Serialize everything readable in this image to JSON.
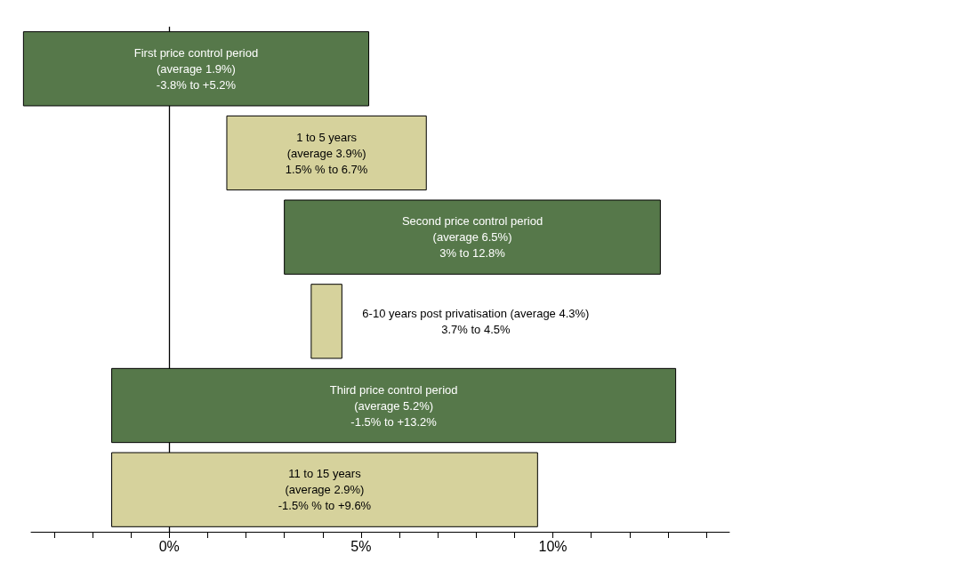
{
  "chart_data": {
    "type": "bar",
    "orientation": "horizontal",
    "categories": [
      null,
      null,
      null,
      null,
      null,
      null
    ],
    "base": [
      -3.8,
      1.5,
      3,
      3.7,
      -1.5,
      -1.5
    ],
    "values": [
      9.0,
      5.2,
      9.8,
      0.8,
      14.7,
      11.1
    ],
    "colors": [
      "#56784a",
      "#d6d29c",
      "#56784a",
      "#d6d29c",
      "#56784a",
      "#d6d29c"
    ],
    "annotations": [
      "First price control period\n(average 1.9%)\n-3.8% to +5.2%",
      "1 to 5 years\n(average 3.9%)\n1.5% % to 6.7%",
      "Second price control period\n(average 6.5%)\n3% to 12.8%",
      "6-10 years post privatisation (average 4.3%)\n3.7% to 4.5%",
      "Third price control period\n(average 5.2%)\n-1.5% to +13.2%",
      "11 to 15 years\n(average 2.9%)\n-1.5% % to +9.6%"
    ],
    "xlim": [
      -3.6,
      14.6
    ],
    "xticks": [
      {
        "value": -3,
        "label": null
      },
      {
        "value": -2,
        "label": null
      },
      {
        "value": -1,
        "label": null
      },
      {
        "value": 0,
        "label": "0%"
      },
      {
        "value": 1,
        "label": null
      },
      {
        "value": 2,
        "label": null
      },
      {
        "value": 3,
        "label": null
      },
      {
        "value": 4,
        "label": null
      },
      {
        "value": 5,
        "label": "5%"
      },
      {
        "value": 6,
        "label": null
      },
      {
        "value": 7,
        "label": null
      },
      {
        "value": 8,
        "label": null
      },
      {
        "value": 9,
        "label": null
      },
      {
        "value": 10,
        "label": "10%"
      },
      {
        "value": 11,
        "label": null
      },
      {
        "value": 12,
        "label": null
      },
      {
        "value": 13,
        "label": null
      },
      {
        "value": 14,
        "label": null
      }
    ],
    "ref_lines": [
      {
        "axis": "x",
        "value": 0,
        "color": "#000000",
        "line_style": "solid"
      }
    ],
    "tick_labels": "x"
  }
}
